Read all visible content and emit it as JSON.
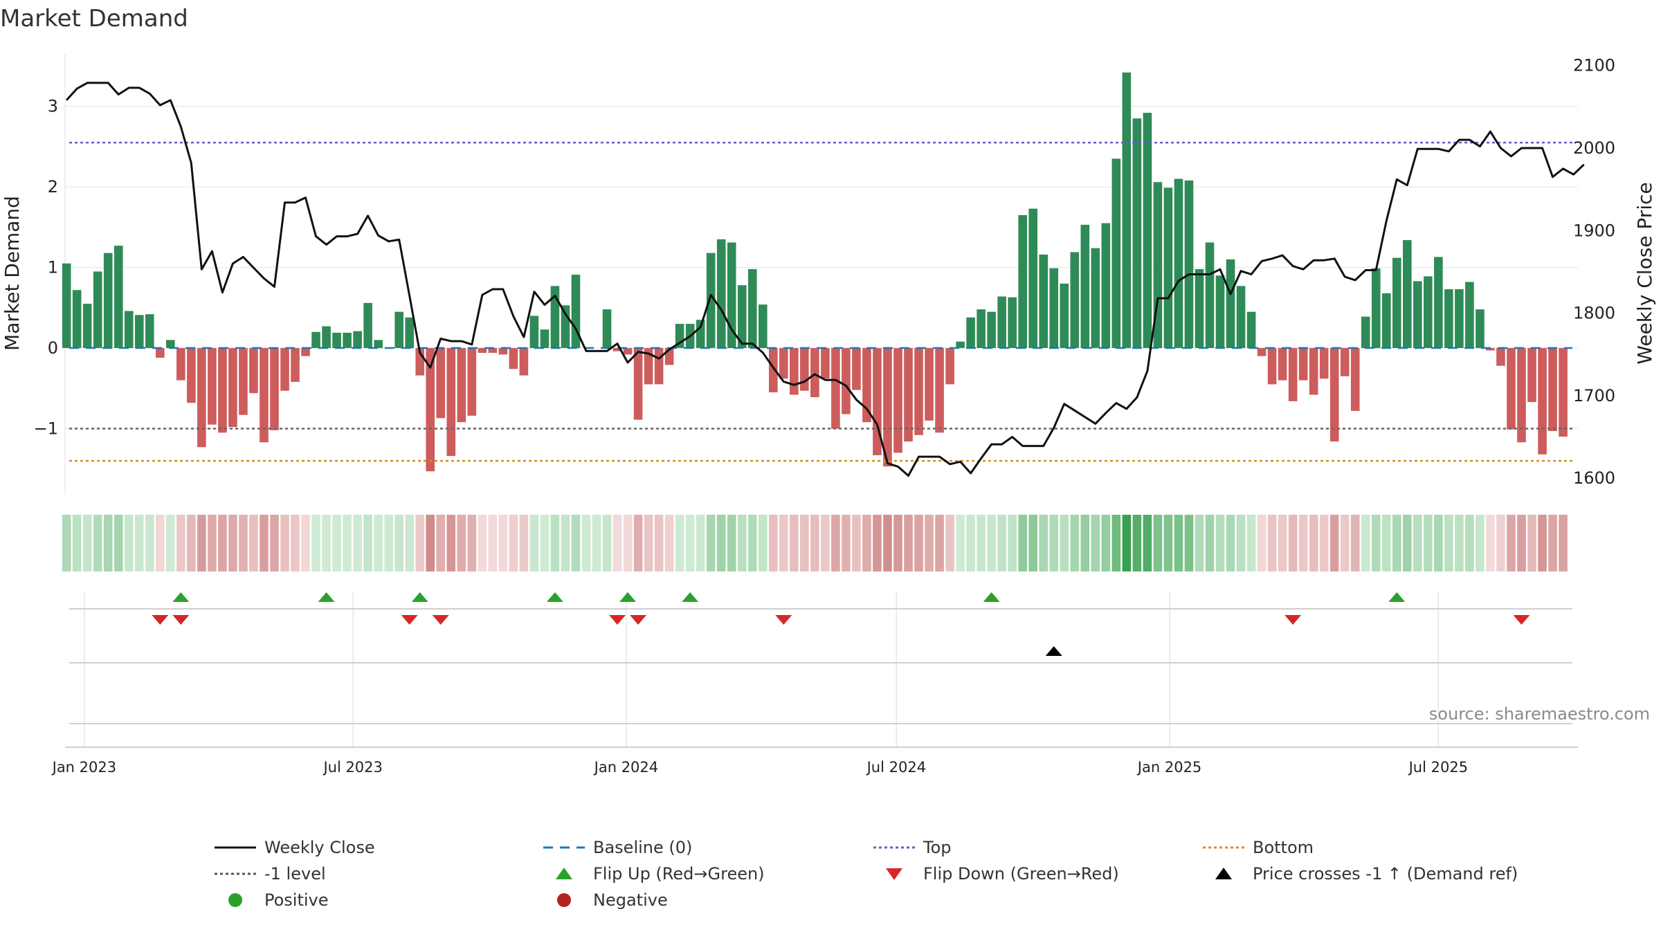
{
  "chart_data": {
    "type": "bar",
    "title": "Market Demand",
    "ylabel": "Market Demand",
    "y2label": "Weekly Close Price",
    "source": "source: sharemaestro.com",
    "ylim": [
      -1.82,
      3.65
    ],
    "y2lim": [
      1580,
      2114
    ],
    "yticks": [
      -1,
      0,
      1,
      2,
      3
    ],
    "ytick_labels": [
      "−1",
      "0",
      "1",
      "2",
      "3"
    ],
    "y2ticks": [
      1600,
      1700,
      1800,
      1900,
      2000,
      2100
    ],
    "y2tick_labels": [
      "1600",
      "1700",
      "1800",
      "1900",
      "2000",
      "2100"
    ],
    "x_start": "2022-12-19",
    "x_end": "2025-10-03",
    "xticks": [
      {
        "date": "2023-01-01",
        "label": "Jan 2023"
      },
      {
        "date": "2023-07-01",
        "label": "Jul 2023"
      },
      {
        "date": "2024-01-01",
        "label": "Jan 2024"
      },
      {
        "date": "2024-07-01",
        "label": "Jul 2024"
      },
      {
        "date": "2025-01-01",
        "label": "Jan 2025"
      },
      {
        "date": "2025-07-01",
        "label": "Jul 2025"
      }
    ],
    "first_week": "2022-12-20",
    "levels": {
      "top": 2.55,
      "bottom": -1.4,
      "minus_one": -1,
      "baseline": 0
    },
    "demand": [
      1.05,
      0.72,
      0.55,
      0.95,
      1.18,
      1.27,
      0.46,
      0.41,
      0.42,
      -0.12,
      0.1,
      -0.4,
      -0.68,
      -1.23,
      -0.95,
      -1.05,
      -0.98,
      -0.83,
      -0.56,
      -1.17,
      -1.02,
      -0.53,
      -0.42,
      -0.1,
      0.2,
      0.27,
      0.19,
      0.19,
      0.21,
      0.56,
      0.1,
      0.0,
      0.45,
      0.38,
      -0.34,
      -1.53,
      -0.87,
      -1.34,
      -0.92,
      -0.84,
      -0.06,
      -0.06,
      -0.08,
      -0.26,
      -0.34,
      0.4,
      0.23,
      0.77,
      0.53,
      0.91,
      0.0,
      0.0,
      0.48,
      -0.04,
      -0.08,
      -0.89,
      -0.45,
      -0.45,
      -0.21,
      0.3,
      0.3,
      0.35,
      1.18,
      1.35,
      1.31,
      0.78,
      0.98,
      0.54,
      -0.55,
      -0.38,
      -0.58,
      -0.53,
      -0.61,
      -0.38,
      -1.0,
      -0.82,
      -0.52,
      -0.92,
      -1.33,
      -1.47,
      -1.3,
      -1.16,
      -1.08,
      -0.9,
      -1.05,
      -0.45,
      0.08,
      0.38,
      0.48,
      0.45,
      0.64,
      0.63,
      1.65,
      1.73,
      1.16,
      0.99,
      0.8,
      1.19,
      1.53,
      1.24,
      1.55,
      2.35,
      3.42,
      2.85,
      2.92,
      2.06,
      1.99,
      2.1,
      2.08,
      0.98,
      1.31,
      0.9,
      1.1,
      0.77,
      0.45,
      -0.1,
      -0.45,
      -0.4,
      -0.66,
      -0.4,
      -0.58,
      -0.38,
      -1.16,
      -0.35,
      -0.78,
      0.39,
      0.99,
      0.68,
      1.12,
      1.34,
      0.83,
      0.89,
      1.13,
      0.73,
      0.73,
      0.82,
      0.48,
      -0.03,
      -0.22,
      -1.01,
      -1.17,
      -0.67,
      -1.32,
      -1.03,
      -1.1
    ],
    "close": [
      2058,
      2072,
      2079,
      2079,
      2079,
      2065,
      2073,
      2073,
      2066,
      2052,
      2058,
      2026,
      1982,
      1853,
      1875,
      1825,
      1860,
      1868,
      1855,
      1842,
      1832,
      1934,
      1934,
      1940,
      1893,
      1883,
      1893,
      1893,
      1896,
      1918,
      1894,
      1887,
      1889,
      1821,
      1752,
      1734,
      1769,
      1766,
      1766,
      1762,
      1822,
      1829,
      1829,
      1796,
      1771,
      1826,
      1810,
      1821,
      1799,
      1781,
      1754,
      1754,
      1754,
      1763,
      1740,
      1753,
      1751,
      1745,
      1756,
      1764,
      1772,
      1783,
      1822,
      1804,
      1780,
      1763,
      1763,
      1752,
      1734,
      1717,
      1713,
      1717,
      1726,
      1719,
      1719,
      1712,
      1695,
      1684,
      1665,
      1618,
      1614,
      1603,
      1626,
      1626,
      1626,
      1617,
      1620,
      1606,
      1624,
      1641,
      1641,
      1650,
      1639,
      1639,
      1639,
      1661,
      1690,
      1682,
      1674,
      1666,
      1679,
      1691,
      1684,
      1698,
      1730,
      1818,
      1818,
      1839,
      1847,
      1847,
      1847,
      1853,
      1823,
      1851,
      1847,
      1863,
      1866,
      1870,
      1857,
      1853,
      1864,
      1864,
      1866,
      1844,
      1840,
      1852,
      1852,
      1912,
      1962,
      1955,
      1999,
      1999,
      1999,
      1996,
      2010,
      2010,
      2002,
      2020,
      2000,
      1990,
      2000,
      2000,
      2000,
      1965,
      1975,
      1968,
      1980
    ],
    "signals": {
      "flip_up_weeks": [
        11,
        25,
        34,
        47,
        54,
        60,
        89,
        128
      ],
      "flip_down_weeks": [
        9,
        11,
        33,
        36,
        53,
        55,
        69,
        118,
        140
      ],
      "price_cross_weeks": [
        95
      ]
    },
    "colors": {
      "positive_bar": "#2e8b57",
      "negative_bar": "#cd5c5c",
      "close_line": "#111111",
      "baseline": "#1f77b4",
      "top": "#6a5acd",
      "bottom": "#d4901a",
      "minus_one": "#666666",
      "flip_up": "#2ca02c",
      "flip_down": "#d62728",
      "price_cross": "#000000",
      "positive_dot": "#2ca02c",
      "negative_dot": "#b22222"
    },
    "legend": [
      {
        "label": "Weekly Close",
        "kind": "line",
        "color": "#111111"
      },
      {
        "label": "Baseline (0)",
        "kind": "dash",
        "color": "#1f77b4"
      },
      {
        "label": "Top",
        "kind": "dot",
        "color": "#6a5acd"
      },
      {
        "label": "Bottom",
        "kind": "dot",
        "color": "#d4901a"
      },
      {
        "label": "-1 level",
        "kind": "dot",
        "color": "#555555"
      },
      {
        "label": "Flip Up (Red→Green)",
        "kind": "tri-up",
        "color": "#2ca02c"
      },
      {
        "label": "Flip Down (Green→Red)",
        "kind": "tri-down",
        "color": "#d62728"
      },
      {
        "label": "Price crosses -1 ↑ (Demand ref)",
        "kind": "tri-up",
        "color": "#000000"
      },
      {
        "label": "Positive",
        "kind": "circle",
        "color": "#2ca02c"
      },
      {
        "label": "Negative",
        "kind": "circle",
        "color": "#b22222"
      }
    ]
  }
}
